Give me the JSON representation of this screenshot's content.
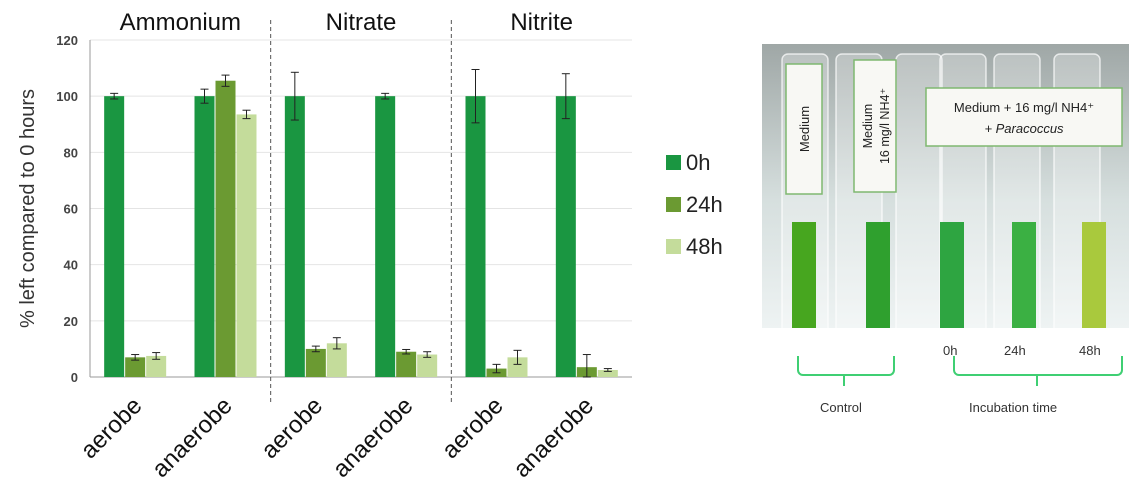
{
  "chart_data": {
    "type": "bar",
    "ylabel": "% left compared to 0 hours",
    "ylim": [
      0,
      120
    ],
    "yticks": [
      "0",
      "20",
      "40",
      "60",
      "80",
      "100",
      "120"
    ],
    "grid": true,
    "legend_position": "right",
    "groups": [
      {
        "title": "Ammonium",
        "categories": [
          "aerobe",
          "anaerobe"
        ]
      },
      {
        "title": "Nitrate",
        "categories": [
          "aerobe",
          "anaerobe"
        ]
      },
      {
        "title": "Nitrite",
        "categories": [
          "aerobe",
          "anaerobe"
        ]
      }
    ],
    "series": [
      {
        "name": "0h",
        "color": "#1a9641",
        "values": [
          100,
          100,
          100,
          100,
          100,
          100
        ],
        "errors": [
          1,
          2.5,
          8.5,
          1,
          9.5,
          8
        ]
      },
      {
        "name": "24h",
        "color": "#6b9a32",
        "values": [
          7,
          105.5,
          10,
          9,
          3,
          3.5
        ],
        "errors": [
          1,
          2,
          1,
          0.8,
          1.5,
          4.5
        ]
      },
      {
        "name": "48h",
        "color": "#c4dc9b",
        "values": [
          7.5,
          93.5,
          12,
          8,
          7,
          2.5
        ],
        "errors": [
          1.2,
          1.5,
          2,
          1,
          2.5,
          0.5
        ]
      }
    ]
  },
  "photo": {
    "labels": {
      "medium": "Medium",
      "medium_nh4": "Medium\n16 mg/l NH4⁺",
      "paracoccus_line1": "Medium + 16 mg/l NH4⁺",
      "paracoccus_line2": "+ Paracoccus"
    },
    "captions": {
      "t0": "0h",
      "t24": "24h",
      "t48": "48h",
      "control": "Control",
      "incubation": "Incubation time"
    },
    "liquid_colors": [
      "#47a61f",
      "#2fa02e",
      "#2ea541",
      "#3bb043",
      "#a9c93d"
    ]
  }
}
